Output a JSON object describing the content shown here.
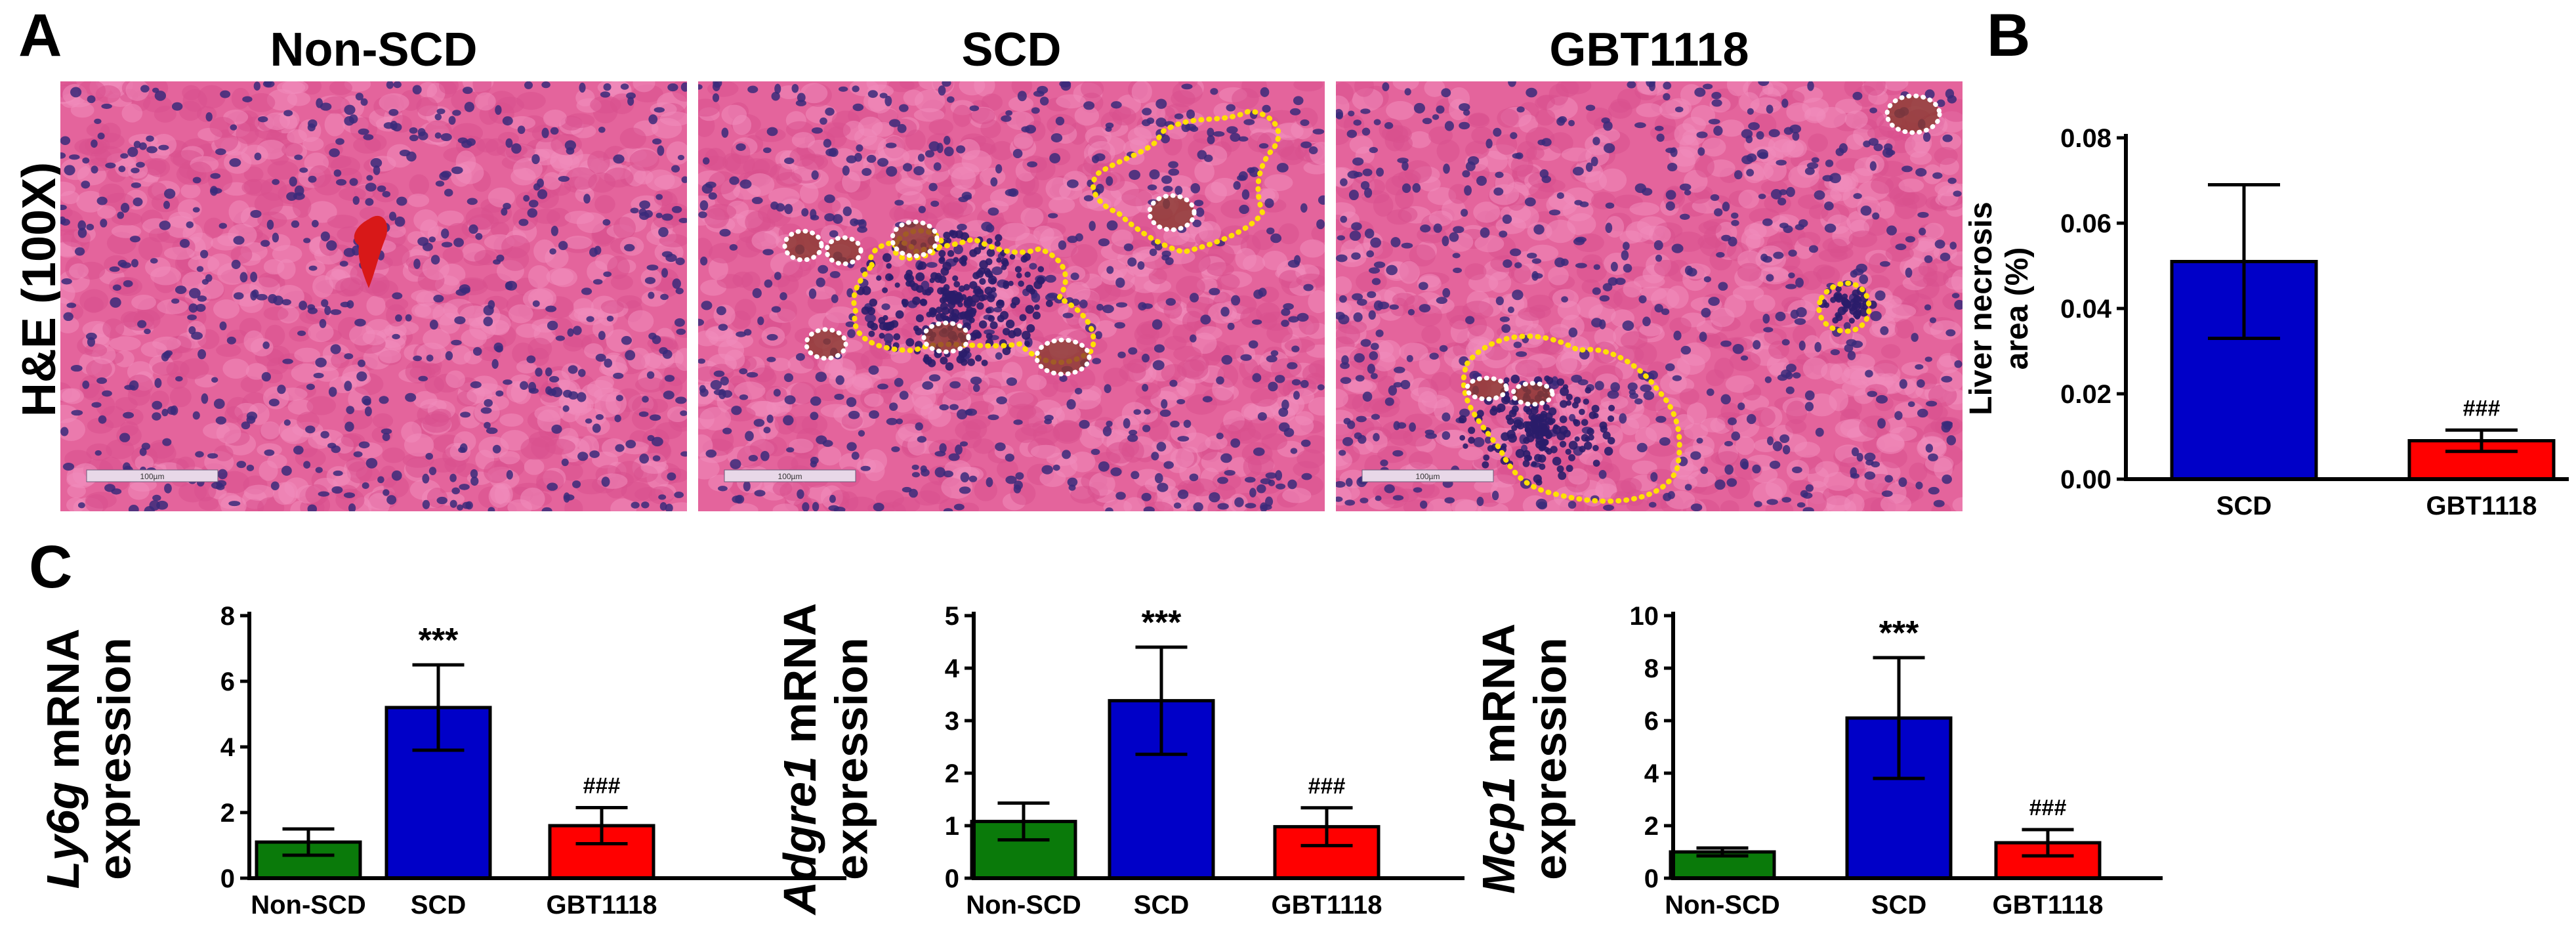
{
  "panels": {
    "a": "A",
    "b": "B",
    "c": "C"
  },
  "micrographs": {
    "stain_label": "H&E (100X)",
    "titles": [
      "Non-SCD",
      "SCD",
      "GBT1118"
    ],
    "scale_bars": [
      "100µm",
      "100µm",
      "100µm"
    ]
  },
  "colors": {
    "non_scd": "#0a7a0a",
    "scd": "#0000c8",
    "gbt1118": "#ff0000",
    "tissue_pink": "#e4649c",
    "nucleus": "#3a2a7a",
    "lesion_outline": "#ffe000",
    "vessel_outline": "#ffffff"
  },
  "chart_data": [
    {
      "id": "B",
      "type": "bar",
      "categories": [
        "SCD",
        "GBT1118"
      ],
      "values": [
        0.051,
        0.009
      ],
      "errors": [
        0.018,
        0.0025
      ],
      "colors": [
        "#0000c8",
        "#ff0000"
      ],
      "ylabel_lines": [
        "Liver necrosis",
        "area (%)"
      ],
      "ylabel_italic_word": "",
      "ylim": [
        0,
        0.08
      ],
      "yticks": [
        0.0,
        0.02,
        0.04,
        0.06,
        0.08
      ],
      "ytick_labels": [
        "0.00",
        "0.02",
        "0.04",
        "0.06",
        "0.08"
      ],
      "annotations": [
        "",
        "###"
      ]
    },
    {
      "id": "C1",
      "type": "bar",
      "categories": [
        "Non-SCD",
        "SCD",
        "GBT1118"
      ],
      "values": [
        1.1,
        5.2,
        1.6
      ],
      "errors": [
        0.4,
        1.3,
        0.55
      ],
      "colors": [
        "#0a7a0a",
        "#0000c8",
        "#ff0000"
      ],
      "ylabel_italic_word": "Ly6g",
      "ylabel_rest": " mRNA",
      "ylabel_line2": "expression",
      "ylim": [
        0,
        8
      ],
      "yticks": [
        0,
        2,
        4,
        6,
        8
      ],
      "ytick_labels": [
        "0",
        "2",
        "4",
        "6",
        "8"
      ],
      "annotations": [
        "",
        "***",
        "###"
      ]
    },
    {
      "id": "C2",
      "type": "bar",
      "categories": [
        "Non-SCD",
        "SCD",
        "GBT1118"
      ],
      "values": [
        1.08,
        3.38,
        0.98
      ],
      "errors": [
        0.35,
        1.02,
        0.36
      ],
      "colors": [
        "#0a7a0a",
        "#0000c8",
        "#ff0000"
      ],
      "ylabel_italic_word": "Adgre1",
      "ylabel_rest": " mRNA",
      "ylabel_line2": "expression",
      "ylim": [
        0,
        5
      ],
      "yticks": [
        0,
        1,
        2,
        3,
        4,
        5
      ],
      "ytick_labels": [
        "0",
        "1",
        "2",
        "3",
        "4",
        "5"
      ],
      "annotations": [
        "",
        "***",
        "###"
      ]
    },
    {
      "id": "C3",
      "type": "bar",
      "categories": [
        "Non-SCD",
        "SCD",
        "GBT1118"
      ],
      "values": [
        1.0,
        6.1,
        1.35
      ],
      "errors": [
        0.15,
        2.3,
        0.5
      ],
      "colors": [
        "#0a7a0a",
        "#0000c8",
        "#ff0000"
      ],
      "ylabel_italic_word": "Mcp1",
      "ylabel_rest": " mRNA",
      "ylabel_line2": "expression",
      "ylim": [
        0,
        10
      ],
      "yticks": [
        0,
        2,
        4,
        6,
        8,
        10
      ],
      "ytick_labels": [
        "0",
        "2",
        "4",
        "6",
        "8",
        "10"
      ],
      "annotations": [
        "",
        "***",
        "###"
      ]
    }
  ]
}
